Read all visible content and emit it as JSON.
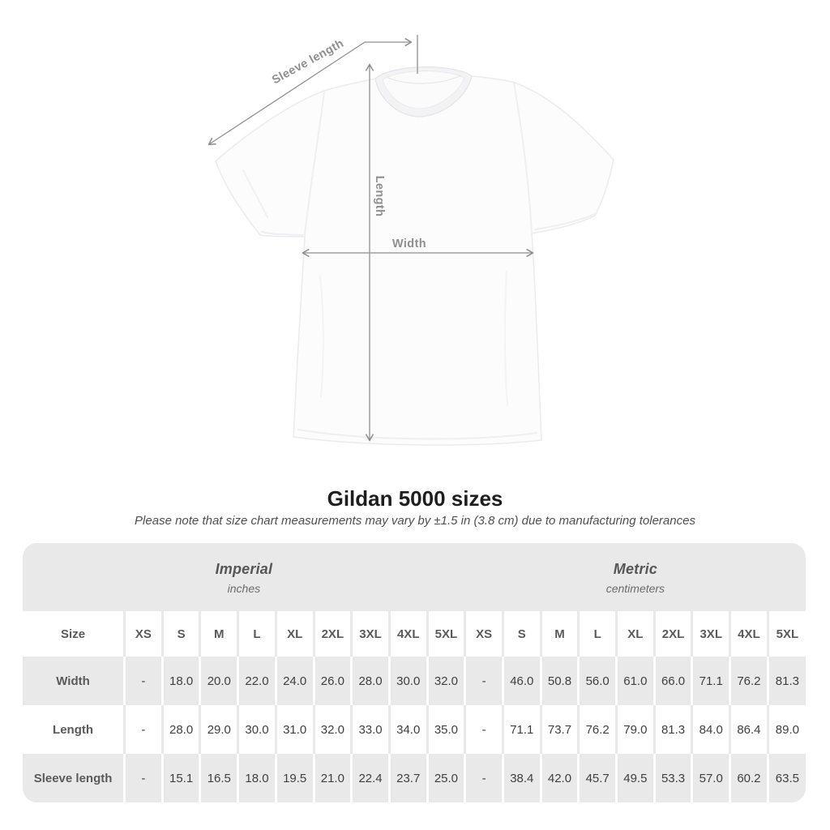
{
  "diagram": {
    "sleeve_length_label": "Sleeve length",
    "length_label": "Length",
    "width_label": "Width"
  },
  "heading": {
    "title": "Gildan 5000 sizes",
    "note": "Please note that size chart measurements may vary by ±1.5 in (3.8 cm) due to manufacturing tolerances"
  },
  "table": {
    "corner_label": "Size",
    "sections": [
      {
        "name": "Imperial",
        "unit": "inches"
      },
      {
        "name": "Metric",
        "unit": "centimeters"
      }
    ],
    "sizes": [
      "XS",
      "S",
      "M",
      "L",
      "XL",
      "2XL",
      "3XL",
      "4XL",
      "5XL"
    ],
    "rows": [
      {
        "label": "Width",
        "imperial": [
          "-",
          "18.0",
          "20.0",
          "22.0",
          "24.0",
          "26.0",
          "28.0",
          "30.0",
          "32.0"
        ],
        "metric": [
          "-",
          "46.0",
          "50.8",
          "56.0",
          "61.0",
          "66.0",
          "71.1",
          "76.2",
          "81.3"
        ]
      },
      {
        "label": "Length",
        "imperial": [
          "-",
          "28.0",
          "29.0",
          "30.0",
          "31.0",
          "32.0",
          "33.0",
          "34.0",
          "35.0"
        ],
        "metric": [
          "-",
          "71.1",
          "73.7",
          "76.2",
          "79.0",
          "81.3",
          "84.0",
          "86.4",
          "89.0"
        ]
      },
      {
        "label": "Sleeve length",
        "imperial": [
          "-",
          "15.1",
          "16.5",
          "18.0",
          "19.5",
          "21.0",
          "22.4",
          "23.7",
          "25.0"
        ],
        "metric": [
          "-",
          "38.4",
          "42.0",
          "45.7",
          "49.5",
          "53.3",
          "57.0",
          "60.2",
          "63.5"
        ]
      }
    ]
  },
  "colors": {
    "table_stripe_gray": "#e9e9e9",
    "measurement_line_gray": "#8f8f8f",
    "title_text": "#1e1e1e",
    "value_text": "#3f3f3f",
    "header_text": "#5a5a5a",
    "shirt_fill": "#fcfcfd"
  }
}
